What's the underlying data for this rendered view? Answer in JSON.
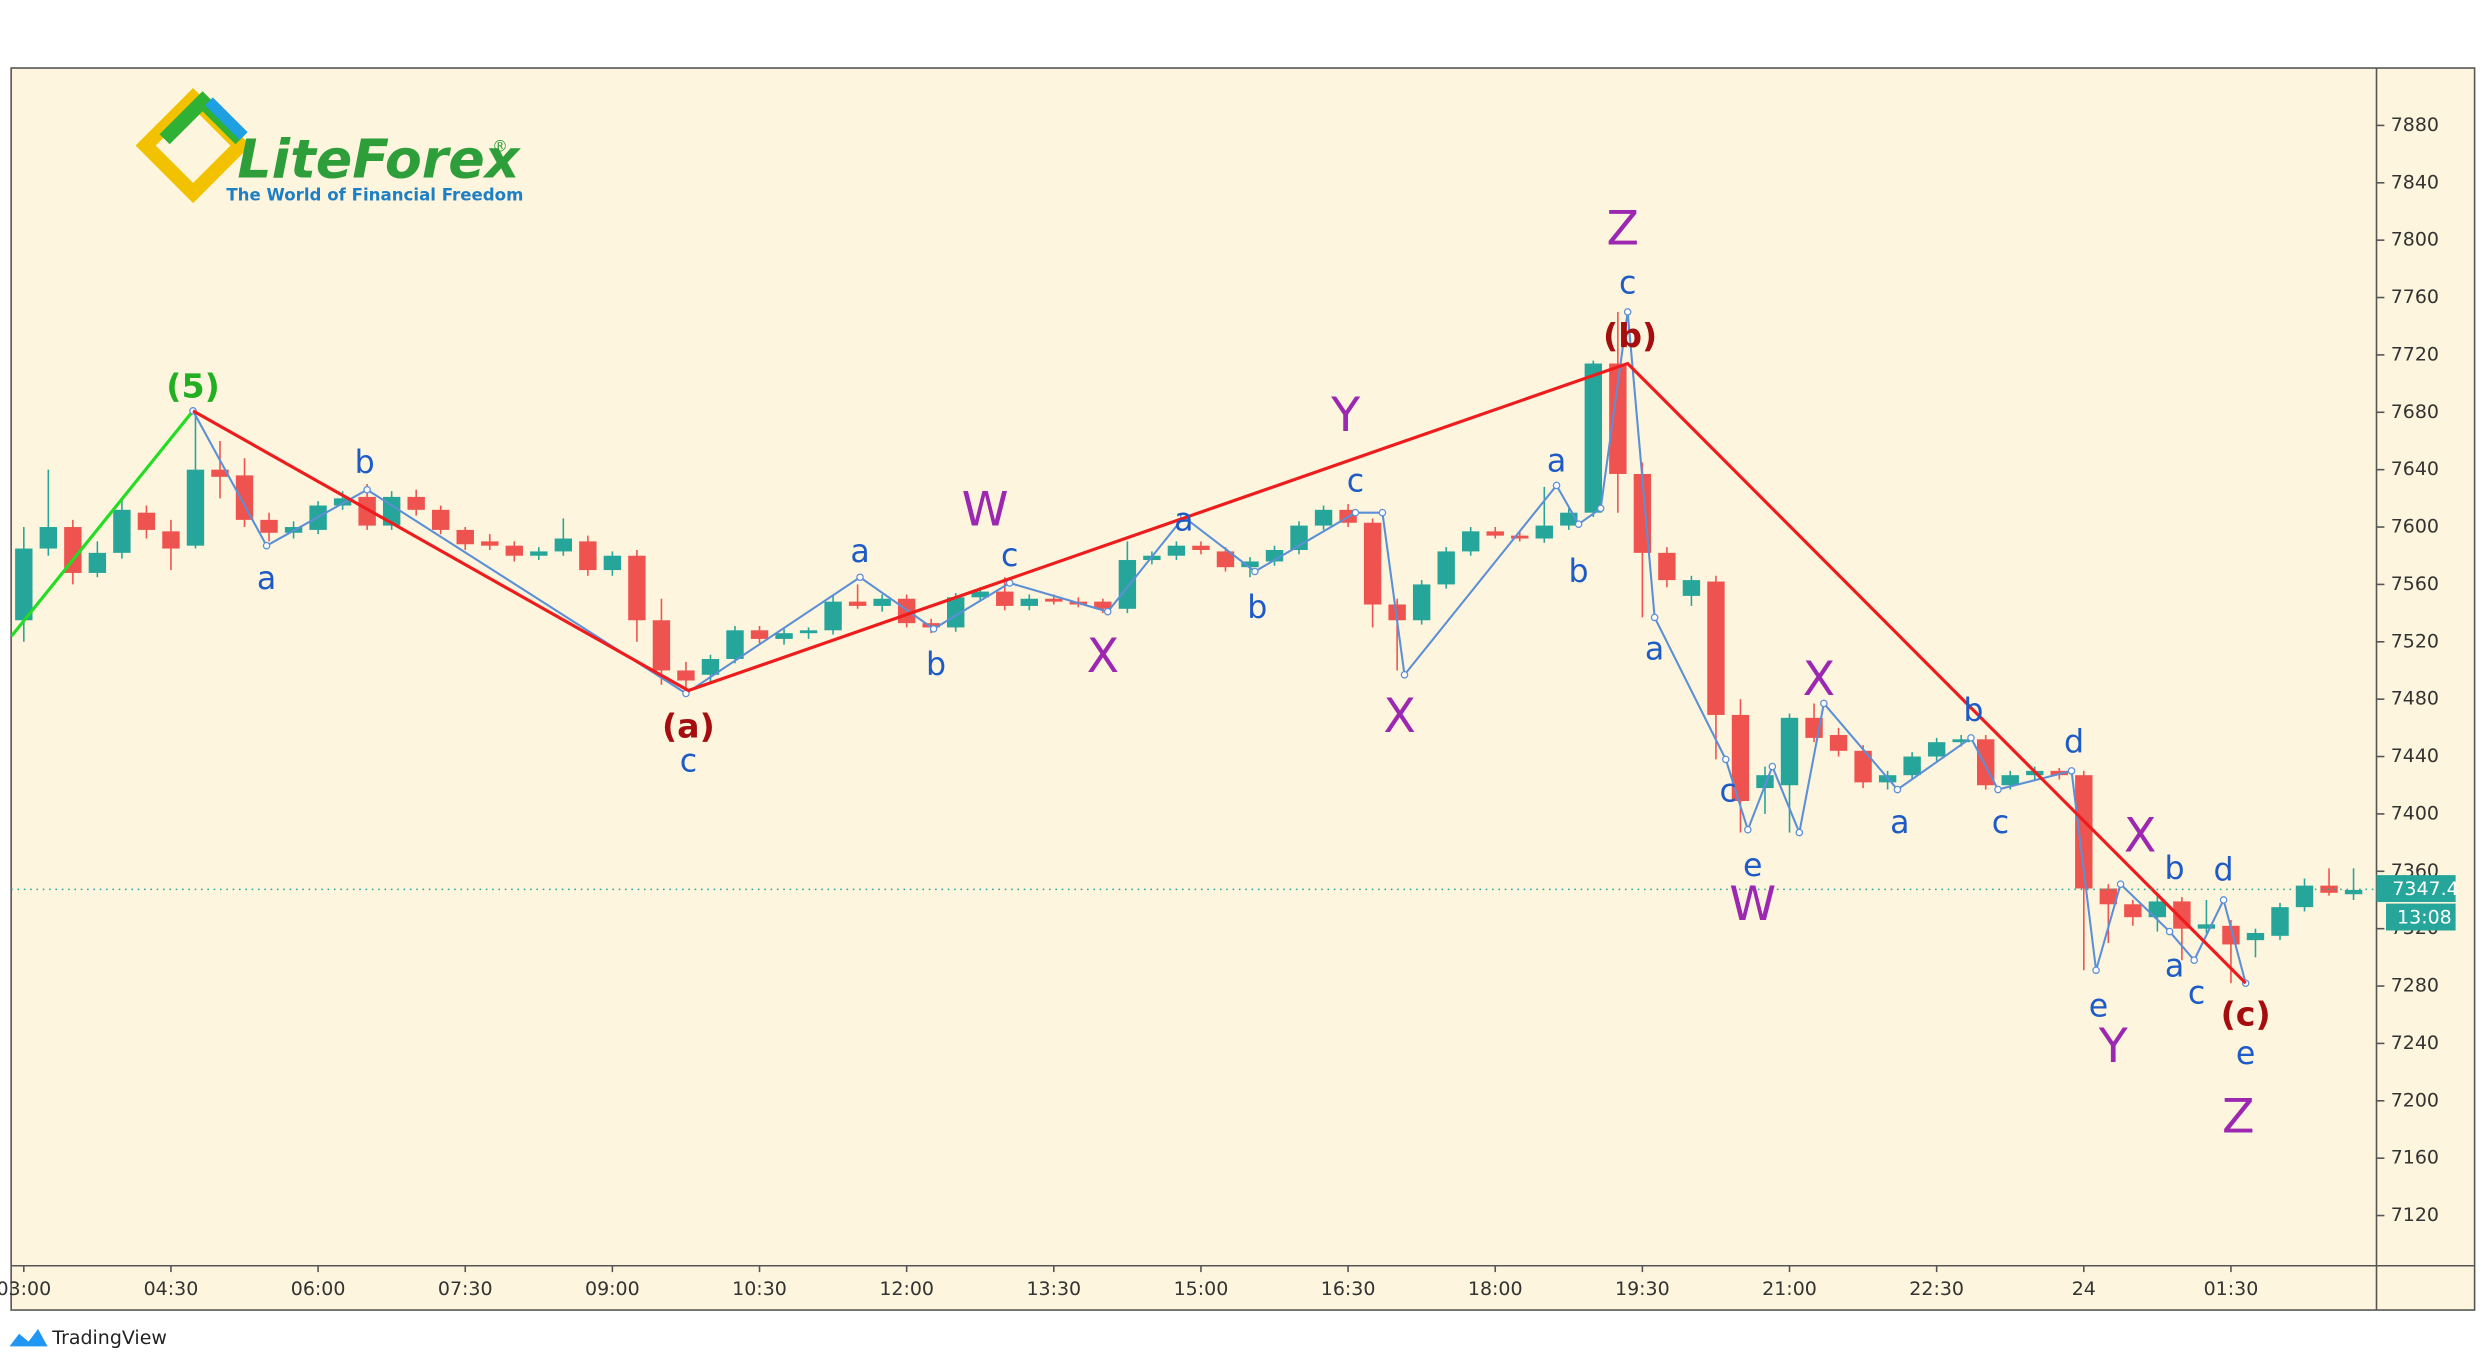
{
  "chart_data": {
    "type": "candlestick",
    "up_color": "#26a69a",
    "down_color": "#ef5350",
    "background": "#fdf5dd",
    "logo": {
      "name": "LiteForex",
      "mark": "®",
      "tagline": "The World of Financial Freedom"
    },
    "footer": "TradingView",
    "categories": [
      "03:00",
      null,
      null,
      null,
      null,
      null,
      "04:30",
      null,
      null,
      null,
      null,
      null,
      "06:00",
      null,
      null,
      null,
      null,
      null,
      "07:30",
      null,
      null,
      null,
      null,
      null,
      "09:00",
      null,
      null,
      null,
      null,
      null,
      "10:30",
      null,
      null,
      null,
      null,
      null,
      "12:00",
      null,
      null,
      null,
      null,
      null,
      "13:30",
      null,
      null,
      null,
      null,
      null,
      "15:00",
      null,
      null,
      null,
      null,
      null,
      "16:30",
      null,
      null,
      null,
      null,
      null,
      "18:00",
      null,
      null,
      null,
      null,
      null,
      "19:30",
      null,
      null,
      null,
      null,
      null,
      "21:00",
      null,
      null,
      null,
      null,
      null,
      "22:30",
      null,
      null,
      null,
      null,
      null,
      "24",
      null,
      null,
      null,
      null,
      null,
      "01:30",
      null,
      null,
      null,
      null,
      null
    ],
    "open": [
      7535,
      7585,
      7600,
      7568,
      7582,
      7610,
      7597,
      7587,
      7640,
      7636,
      7605,
      7596,
      7598,
      7615,
      7621,
      7601,
      7621,
      7612,
      7598,
      7590,
      7587,
      7580,
      7583,
      7590,
      7570,
      7580,
      7535,
      7500,
      7497,
      7508,
      7528,
      7522,
      7526,
      7528,
      7548,
      7545,
      7550,
      7533,
      7530,
      7551,
      7555,
      7545,
      7550,
      7548,
      7548,
      7543,
      7577,
      7580,
      7587,
      7583,
      7572,
      7576,
      7584,
      7601,
      7612,
      7603,
      7546,
      7535,
      7560,
      7583,
      7597,
      7594,
      7592,
      7601,
      7610,
      7714,
      7637,
      7582,
      7552,
      7562,
      7469,
      7418,
      7420,
      7467,
      7455,
      7444,
      7422,
      7427,
      7440,
      7450,
      7452,
      7420,
      7427,
      7430,
      7427,
      7348,
      7337,
      7328,
      7339,
      7320,
      7322,
      7312,
      7315,
      7335,
      7350,
      7344
    ],
    "high": [
      7600,
      7640,
      7605,
      7590,
      7620,
      7615,
      7605,
      7680,
      7660,
      7648,
      7610,
      7604,
      7618,
      7625,
      7630,
      7625,
      7626,
      7615,
      7600,
      7595,
      7590,
      7586,
      7606,
      7594,
      7583,
      7584,
      7550,
      7506,
      7511,
      7531,
      7531,
      7529,
      7530,
      7552,
      7560,
      7553,
      7553,
      7536,
      7554,
      7558,
      7565,
      7553,
      7553,
      7551,
      7550,
      7590,
      7583,
      7590,
      7590,
      7586,
      7579,
      7587,
      7604,
      7615,
      7616,
      7606,
      7550,
      7563,
      7586,
      7600,
      7600,
      7597,
      7628,
      7613,
      7716,
      7750,
      7645,
      7586,
      7566,
      7566,
      7480,
      7433,
      7470,
      7477,
      7460,
      7448,
      7430,
      7443,
      7453,
      7455,
      7455,
      7430,
      7433,
      7432,
      7430,
      7351,
      7340,
      7345,
      7342,
      7340,
      7326,
      7320,
      7338,
      7355,
      7362,
      7362
    ],
    "low": [
      7520,
      7580,
      7560,
      7565,
      7578,
      7592,
      7570,
      7585,
      7620,
      7600,
      7590,
      7592,
      7595,
      7612,
      7598,
      7598,
      7608,
      7595,
      7584,
      7584,
      7576,
      7577,
      7580,
      7566,
      7566,
      7520,
      7490,
      7485,
      7492,
      7505,
      7519,
      7518,
      7522,
      7525,
      7543,
      7541,
      7530,
      7526,
      7527,
      7548,
      7542,
      7542,
      7546,
      7544,
      7540,
      7540,
      7574,
      7577,
      7581,
      7569,
      7565,
      7573,
      7581,
      7598,
      7600,
      7530,
      7500,
      7532,
      7557,
      7580,
      7592,
      7590,
      7589,
      7598,
      7607,
      7610,
      7537,
      7558,
      7545,
      7438,
      7387,
      7400,
      7387,
      7450,
      7440,
      7418,
      7417,
      7424,
      7437,
      7447,
      7417,
      7417,
      7424,
      7424,
      7291,
      7310,
      7322,
      7318,
      7298,
      7317,
      7282,
      7300,
      7312,
      7332,
      7343,
      7340
    ],
    "close": [
      7585,
      7600,
      7568,
      7582,
      7612,
      7598,
      7585,
      7640,
      7635,
      7605,
      7596,
      7600,
      7615,
      7620,
      7601,
      7621,
      7612,
      7598,
      7588,
      7587,
      7580,
      7583,
      7592,
      7570,
      7580,
      7535,
      7500,
      7493,
      7508,
      7528,
      7522,
      7526,
      7528,
      7548,
      7545,
      7550,
      7533,
      7530,
      7551,
      7555,
      7545,
      7550,
      7548,
      7546,
      7543,
      7577,
      7580,
      7587,
      7584,
      7572,
      7576,
      7584,
      7601,
      7612,
      7603,
      7546,
      7535,
      7560,
      7583,
      7597,
      7594,
      7592,
      7601,
      7610,
      7714,
      7637,
      7582,
      7563,
      7563,
      7469,
      7409,
      7427,
      7467,
      7453,
      7444,
      7422,
      7427,
      7440,
      7450,
      7452,
      7420,
      7427,
      7430,
      7427,
      7348,
      7337,
      7328,
      7339,
      7320,
      7323,
      7309,
      7317,
      7335,
      7350,
      7345,
      7347
    ],
    "ylim": [
      7085,
      7920
    ],
    "yticks": [
      7120,
      7160,
      7200,
      7240,
      7280,
      7320,
      7360,
      7400,
      7440,
      7480,
      7520,
      7560,
      7600,
      7640,
      7680,
      7720,
      7760,
      7800,
      7840,
      7880
    ],
    "last_price": 7347.4,
    "countdown": "13:08",
    "wave_lines": [
      {
        "color": "#22dd22",
        "points": [
          [
            -0.5,
            7524
          ],
          [
            6.9,
            7681
          ]
        ]
      },
      {
        "color": "#5b8fd6",
        "points": [
          [
            6.9,
            7681
          ],
          [
            9.9,
            7587
          ],
          [
            14.0,
            7626
          ],
          [
            27.0,
            7484
          ],
          [
            34.1,
            7565
          ],
          [
            37.1,
            7529
          ],
          [
            40.2,
            7561
          ],
          [
            44.2,
            7541
          ],
          [
            47.3,
            7607
          ],
          [
            50.2,
            7569
          ],
          [
            54.3,
            7610
          ],
          [
            55.4,
            7610
          ],
          [
            56.3,
            7497
          ],
          [
            62.5,
            7629
          ],
          [
            63.4,
            7602
          ],
          [
            64.3,
            7613
          ],
          [
            65.4,
            7750
          ],
          [
            66.5,
            7537
          ],
          [
            69.4,
            7438
          ],
          [
            70.3,
            7389
          ],
          [
            71.3,
            7433
          ],
          [
            72.4,
            7387
          ],
          [
            73.4,
            7477
          ],
          [
            76.4,
            7417
          ],
          [
            79.4,
            7453
          ],
          [
            80.5,
            7417
          ],
          [
            83.5,
            7430
          ],
          [
            84.5,
            7291
          ],
          [
            85.5,
            7351
          ],
          [
            87.5,
            7318
          ],
          [
            88.5,
            7298
          ],
          [
            89.7,
            7340
          ],
          [
            90.6,
            7282
          ]
        ]
      },
      {
        "color": "#ee1c1c",
        "points": [
          [
            6.9,
            7681
          ],
          [
            27.1,
            7486
          ],
          [
            65.4,
            7714
          ],
          [
            90.6,
            7282
          ]
        ]
      }
    ],
    "annotations": [
      {
        "text": "(5)",
        "x": 6.9,
        "y": 7697,
        "color": "#22b022"
      },
      {
        "text": "a",
        "x": 9.9,
        "y": 7563,
        "color": "#1e5bc6"
      },
      {
        "text": "b",
        "x": 13.9,
        "y": 7644,
        "color": "#1e5bc6"
      },
      {
        "text": "(a)",
        "x": 27.1,
        "y": 7460,
        "color": "#a50e0e"
      },
      {
        "text": "c",
        "x": 27.1,
        "y": 7436,
        "color": "#1e5bc6"
      },
      {
        "text": "a",
        "x": 34.1,
        "y": 7582,
        "color": "#1e5bc6"
      },
      {
        "text": "b",
        "x": 37.2,
        "y": 7503,
        "color": "#1e5bc6"
      },
      {
        "text": "W",
        "x": 39.2,
        "y": 7610,
        "color": "#9c27b0"
      },
      {
        "text": "c",
        "x": 40.2,
        "y": 7579,
        "color": "#1e5bc6"
      },
      {
        "text": "X",
        "x": 44.0,
        "y": 7508,
        "color": "#9c27b0"
      },
      {
        "text": "a",
        "x": 47.3,
        "y": 7604,
        "color": "#1e5bc6"
      },
      {
        "text": "b",
        "x": 50.3,
        "y": 7543,
        "color": "#1e5bc6"
      },
      {
        "text": "Y",
        "x": 53.9,
        "y": 7676,
        "color": "#9c27b0"
      },
      {
        "text": "c",
        "x": 54.3,
        "y": 7631,
        "color": "#1e5bc6"
      },
      {
        "text": "X",
        "x": 56.1,
        "y": 7466,
        "color": "#9c27b0"
      },
      {
        "text": "a",
        "x": 62.5,
        "y": 7645,
        "color": "#1e5bc6"
      },
      {
        "text": "b",
        "x": 63.4,
        "y": 7568,
        "color": "#1e5bc6"
      },
      {
        "text": "Z",
        "x": 65.2,
        "y": 7806,
        "color": "#9c27b0"
      },
      {
        "text": "c",
        "x": 65.4,
        "y": 7769,
        "color": "#1e5bc6"
      },
      {
        "text": "(b)",
        "x": 65.5,
        "y": 7732,
        "color": "#a50e0e"
      },
      {
        "text": "a",
        "x": 66.5,
        "y": 7514,
        "color": "#1e5bc6"
      },
      {
        "text": "c",
        "x": 69.5,
        "y": 7415,
        "color": "#1e5bc6"
      },
      {
        "text": "e",
        "x": 70.5,
        "y": 7363,
        "color": "#1e5bc6"
      },
      {
        "text": "W",
        "x": 70.5,
        "y": 7335,
        "color": "#9c27b0"
      },
      {
        "text": "X",
        "x": 73.2,
        "y": 7492,
        "color": "#9c27b0"
      },
      {
        "text": "a",
        "x": 76.5,
        "y": 7393,
        "color": "#1e5bc6"
      },
      {
        "text": "b",
        "x": 79.5,
        "y": 7471,
        "color": "#1e5bc6"
      },
      {
        "text": "c",
        "x": 80.6,
        "y": 7393,
        "color": "#1e5bc6"
      },
      {
        "text": "d",
        "x": 83.6,
        "y": 7449,
        "color": "#1e5bc6"
      },
      {
        "text": "X",
        "x": 86.3,
        "y": 7383,
        "color": "#9c27b0"
      },
      {
        "text": "b",
        "x": 87.7,
        "y": 7361,
        "color": "#1e5bc6"
      },
      {
        "text": "d",
        "x": 89.7,
        "y": 7360,
        "color": "#1e5bc6"
      },
      {
        "text": "a",
        "x": 87.7,
        "y": 7293,
        "color": "#1e5bc6"
      },
      {
        "text": "c",
        "x": 88.6,
        "y": 7274,
        "color": "#1e5bc6"
      },
      {
        "text": "e",
        "x": 84.6,
        "y": 7265,
        "color": "#1e5bc6"
      },
      {
        "text": "Y",
        "x": 85.2,
        "y": 7236,
        "color": "#9c27b0"
      },
      {
        "text": "(c)",
        "x": 90.6,
        "y": 7259,
        "color": "#a50e0e"
      },
      {
        "text": "e",
        "x": 90.6,
        "y": 7232,
        "color": "#1e5bc6"
      },
      {
        "text": "Z",
        "x": 90.3,
        "y": 7187,
        "color": "#9c27b0"
      }
    ]
  }
}
